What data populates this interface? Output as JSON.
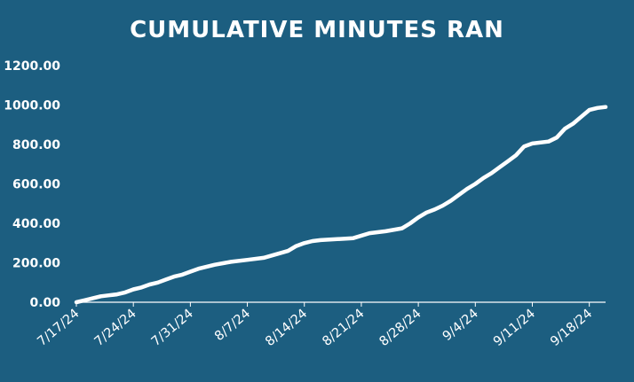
{
  "chart_data": {
    "type": "line",
    "title": "CUMULATIVE MINUTES RAN",
    "xlabel": "",
    "ylabel": "",
    "ylim": [
      0,
      1200
    ],
    "yticks": [
      "0.00",
      "200.00",
      "400.00",
      "600.00",
      "800.00",
      "1000.00",
      "1200.00"
    ],
    "xticks": [
      "7/17/24",
      "7/24/24",
      "7/31/24",
      "8/7/24",
      "8/14/24",
      "8/21/24",
      "8/28/24",
      "9/4/24",
      "9/11/24",
      "9/18/24"
    ],
    "xlim": [
      "2024-07-17",
      "2024-09-20"
    ],
    "grid": false,
    "legend": "none",
    "colors": {
      "background": "#1c5e80",
      "line": "#ffffff",
      "drop_lines": "#ffffff"
    },
    "series": [
      {
        "x": [
          "2024-07-17",
          "2024-07-18",
          "2024-07-19",
          "2024-07-20",
          "2024-07-21",
          "2024-07-22",
          "2024-07-23",
          "2024-07-24",
          "2024-07-25",
          "2024-07-26",
          "2024-07-27",
          "2024-07-28",
          "2024-07-29",
          "2024-07-30",
          "2024-07-31",
          "2024-08-01",
          "2024-08-02",
          "2024-08-03",
          "2024-08-05",
          "2024-08-07",
          "2024-08-09",
          "2024-08-12",
          "2024-08-13",
          "2024-08-14",
          "2024-08-15",
          "2024-08-16",
          "2024-08-20",
          "2024-08-22",
          "2024-08-24",
          "2024-08-26",
          "2024-08-27",
          "2024-08-28",
          "2024-08-29",
          "2024-08-30",
          "2024-08-31",
          "2024-09-01",
          "2024-09-02",
          "2024-09-03",
          "2024-09-04",
          "2024-09-05",
          "2024-09-06",
          "2024-09-07",
          "2024-09-08",
          "2024-09-09",
          "2024-09-10",
          "2024-09-11",
          "2024-09-13",
          "2024-09-14",
          "2024-09-15",
          "2024-09-16",
          "2024-09-17",
          "2024-09-18",
          "2024-09-19",
          "2024-09-20"
        ],
        "values": [
          0,
          10,
          20,
          30,
          35,
          40,
          50,
          65,
          75,
          90,
          100,
          115,
          130,
          140,
          155,
          170,
          180,
          190,
          205,
          215,
          225,
          260,
          285,
          300,
          310,
          315,
          325,
          350,
          360,
          375,
          400,
          430,
          455,
          470,
          490,
          515,
          545,
          575,
          600,
          630,
          655,
          685,
          715,
          745,
          790,
          805,
          815,
          835,
          880,
          905,
          940,
          975,
          985,
          990
        ]
      }
    ]
  }
}
